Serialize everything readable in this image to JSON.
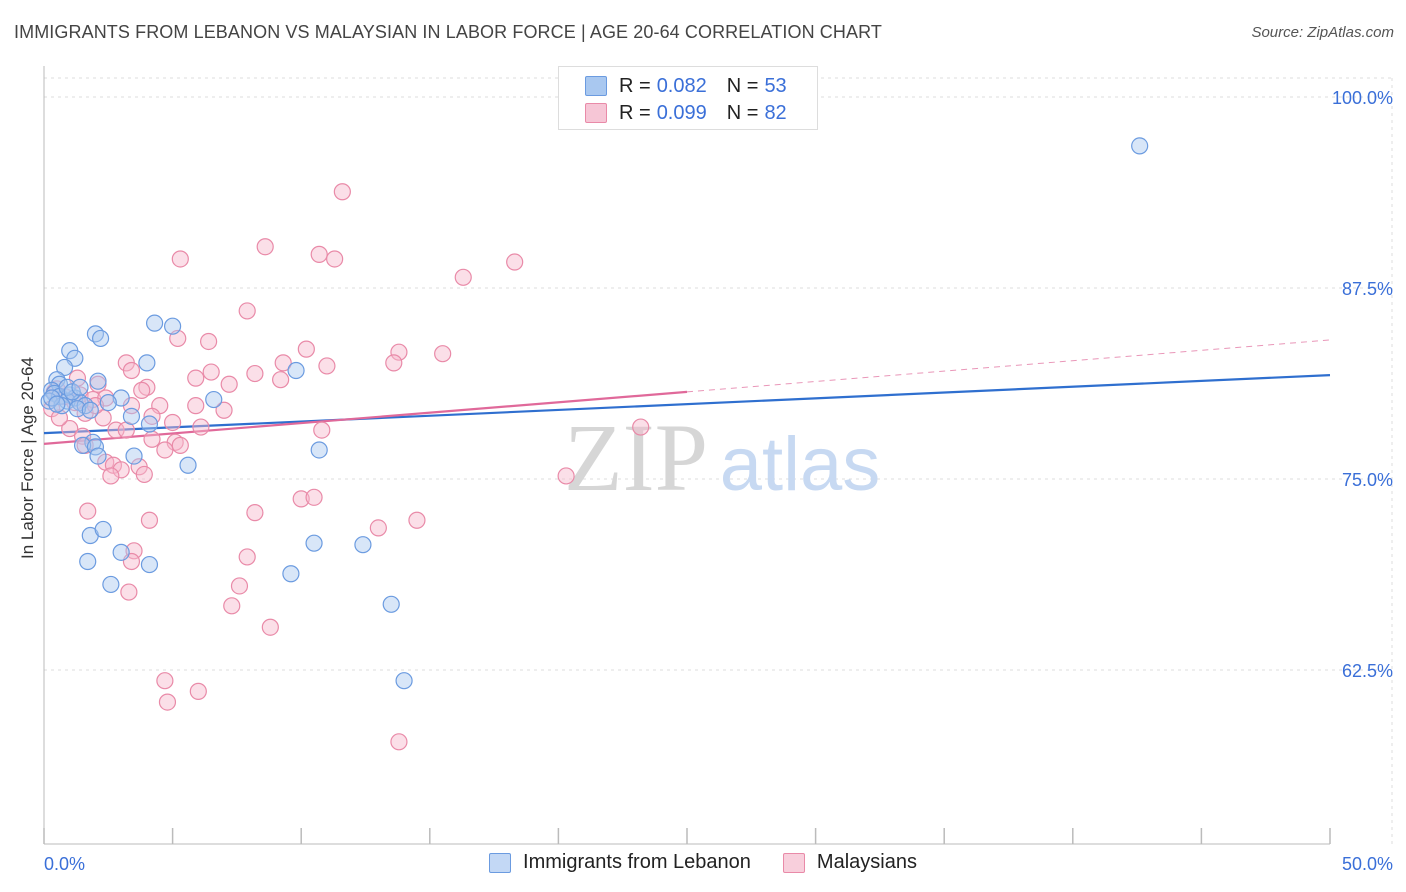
{
  "title": "IMMIGRANTS FROM LEBANON VS MALAYSIAN IN LABOR FORCE | AGE 20-64 CORRELATION CHART",
  "source": "Source: ZipAtlas.com",
  "watermark": {
    "zip": "ZIP",
    "atlas": "atlas"
  },
  "legend": {
    "series1": {
      "r_label": "R =",
      "r_value": "0.082",
      "n_label": "N =",
      "n_value": "53"
    },
    "series2": {
      "r_label": "R =",
      "r_value": "0.099",
      "n_label": "N =",
      "n_value": "82"
    }
  },
  "colors": {
    "blue_fill": "#a9c8f0",
    "blue_stroke": "#6b9be0",
    "blue_line": "#2f6fcf",
    "pink_fill": "#f6b8cb",
    "pink_stroke": "#e98aa8",
    "pink_line": "#e0699a",
    "tick_label": "#3a6fd8",
    "grid": "#dddddd"
  },
  "chart_data": {
    "type": "scatter",
    "title": "IMMIGRANTS FROM LEBANON VS MALAYSIAN IN LABOR FORCE | AGE 20-64 CORRELATION CHART",
    "xlabel": "",
    "ylabel": "In Labor Force | Age 20-64",
    "xlim": [
      0,
      50
    ],
    "ylim": [
      50,
      100
    ],
    "x_tick_labels": [
      "0.0%",
      "50.0%"
    ],
    "y_ticks": [
      62.5,
      75.0,
      87.5,
      100.0
    ],
    "y_tick_labels": [
      "62.5%",
      "75.0%",
      "87.5%",
      "100.0%"
    ],
    "grid": true,
    "legend_position": "top-center",
    "series": [
      {
        "name": "Immigrants from Lebanon",
        "color": "#a9c8f0",
        "trend": {
          "x": [
            0,
            50
          ],
          "y": [
            78.0,
            81.8
          ],
          "style": "solid"
        },
        "points": [
          [
            42.6,
            96.8
          ],
          [
            4.3,
            85.2
          ],
          [
            5.0,
            85.0
          ],
          [
            2.0,
            84.5
          ],
          [
            2.2,
            84.2
          ],
          [
            1.0,
            83.4
          ],
          [
            1.2,
            82.9
          ],
          [
            0.8,
            82.3
          ],
          [
            4.0,
            82.6
          ],
          [
            9.8,
            82.1
          ],
          [
            0.5,
            81.5
          ],
          [
            0.6,
            81.2
          ],
          [
            2.1,
            81.4
          ],
          [
            0.3,
            80.8
          ],
          [
            0.4,
            80.6
          ],
          [
            0.6,
            80.4
          ],
          [
            1.0,
            80.5
          ],
          [
            1.2,
            80.3
          ],
          [
            0.9,
            80.1
          ],
          [
            1.4,
            80.0
          ],
          [
            0.2,
            80.1
          ],
          [
            1.6,
            79.8
          ],
          [
            3.0,
            80.3
          ],
          [
            6.6,
            80.2
          ],
          [
            0.7,
            79.8
          ],
          [
            1.3,
            79.6
          ],
          [
            1.8,
            79.5
          ],
          [
            3.4,
            79.1
          ],
          [
            4.1,
            78.6
          ],
          [
            1.9,
            77.4
          ],
          [
            1.5,
            77.2
          ],
          [
            2.0,
            77.1
          ],
          [
            10.7,
            76.9
          ],
          [
            2.1,
            76.5
          ],
          [
            3.5,
            76.5
          ],
          [
            5.6,
            75.9
          ],
          [
            1.8,
            71.3
          ],
          [
            2.3,
            71.7
          ],
          [
            10.5,
            70.8
          ],
          [
            12.4,
            70.7
          ],
          [
            1.7,
            69.6
          ],
          [
            3.0,
            70.2
          ],
          [
            4.1,
            69.4
          ],
          [
            9.6,
            68.8
          ],
          [
            2.6,
            68.1
          ],
          [
            13.5,
            66.8
          ],
          [
            14.0,
            61.8
          ],
          [
            0.3,
            80.3
          ],
          [
            0.9,
            81.0
          ],
          [
            1.1,
            80.7
          ],
          [
            0.5,
            79.9
          ],
          [
            1.4,
            81.0
          ],
          [
            2.5,
            80.0
          ]
        ]
      },
      {
        "name": "Malaysians",
        "color": "#f6b8cb",
        "trend": {
          "x": [
            0,
            25
          ],
          "y": [
            77.3,
            80.7
          ],
          "style": "solid",
          "extension": {
            "x": [
              25,
              50
            ],
            "y": [
              80.7,
              84.1
            ]
          },
          "extension_style": "dashed"
        },
        "points": [
          [
            11.6,
            93.8
          ],
          [
            8.6,
            90.2
          ],
          [
            10.7,
            89.7
          ],
          [
            11.3,
            89.4
          ],
          [
            5.3,
            89.4
          ],
          [
            18.3,
            89.2
          ],
          [
            16.3,
            88.2
          ],
          [
            7.9,
            86.0
          ],
          [
            5.2,
            84.2
          ],
          [
            6.4,
            84.0
          ],
          [
            10.2,
            83.5
          ],
          [
            13.8,
            83.3
          ],
          [
            15.5,
            83.2
          ],
          [
            3.2,
            82.6
          ],
          [
            9.3,
            82.6
          ],
          [
            11.0,
            82.4
          ],
          [
            13.6,
            82.6
          ],
          [
            3.4,
            82.1
          ],
          [
            6.5,
            82.0
          ],
          [
            8.2,
            81.9
          ],
          [
            5.9,
            81.6
          ],
          [
            9.2,
            81.5
          ],
          [
            1.3,
            81.6
          ],
          [
            7.2,
            81.2
          ],
          [
            4.0,
            81.0
          ],
          [
            2.1,
            81.2
          ],
          [
            3.8,
            80.8
          ],
          [
            0.4,
            80.7
          ],
          [
            1.4,
            80.5
          ],
          [
            0.8,
            80.4
          ],
          [
            1.9,
            80.2
          ],
          [
            2.4,
            80.3
          ],
          [
            3.4,
            79.8
          ],
          [
            4.5,
            79.8
          ],
          [
            5.9,
            79.8
          ],
          [
            7.0,
            79.5
          ],
          [
            0.3,
            79.6
          ],
          [
            1.6,
            79.3
          ],
          [
            2.3,
            79.0
          ],
          [
            4.2,
            79.1
          ],
          [
            5.0,
            78.7
          ],
          [
            6.1,
            78.4
          ],
          [
            2.8,
            78.2
          ],
          [
            3.2,
            78.2
          ],
          [
            1.0,
            78.3
          ],
          [
            10.8,
            78.2
          ],
          [
            23.2,
            78.4
          ],
          [
            1.5,
            77.8
          ],
          [
            4.2,
            77.6
          ],
          [
            5.1,
            77.4
          ],
          [
            5.3,
            77.2
          ],
          [
            1.6,
            77.2
          ],
          [
            4.7,
            76.9
          ],
          [
            2.4,
            76.1
          ],
          [
            2.7,
            75.9
          ],
          [
            3.0,
            75.6
          ],
          [
            3.7,
            75.8
          ],
          [
            3.9,
            75.3
          ],
          [
            2.6,
            75.2
          ],
          [
            20.3,
            75.2
          ],
          [
            10.0,
            73.7
          ],
          [
            10.5,
            73.8
          ],
          [
            1.7,
            72.9
          ],
          [
            8.2,
            72.8
          ],
          [
            4.1,
            72.3
          ],
          [
            14.5,
            72.3
          ],
          [
            13.0,
            71.8
          ],
          [
            3.5,
            70.3
          ],
          [
            3.4,
            69.6
          ],
          [
            7.9,
            69.9
          ],
          [
            7.6,
            68.0
          ],
          [
            3.3,
            67.6
          ],
          [
            7.3,
            66.7
          ],
          [
            8.8,
            65.3
          ],
          [
            4.7,
            61.8
          ],
          [
            4.8,
            60.4
          ],
          [
            6.0,
            61.1
          ],
          [
            13.8,
            57.8
          ],
          [
            0.6,
            79.0
          ],
          [
            1.2,
            80.0
          ],
          [
            2.0,
            79.8
          ],
          [
            0.5,
            80.9
          ]
        ]
      }
    ]
  }
}
